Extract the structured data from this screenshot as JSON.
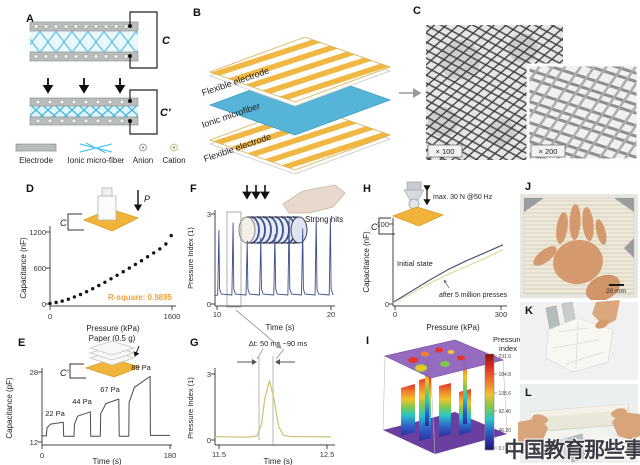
{
  "watermark": "中国教育那些事",
  "panels": {
    "A": {
      "label": "A",
      "cap1": "C",
      "cap2": "C'",
      "legend": [
        "Electrode",
        "Ionic micro-fiber",
        "Anion",
        "Cation"
      ]
    },
    "B": {
      "label": "B",
      "layer_top": "Flexible electrode",
      "layer_mid": "Ionic microfiber",
      "layer_bottom": "Flexible electrode"
    },
    "C": {
      "label": "C",
      "mag_left": "× 100",
      "mag_right": "× 200"
    },
    "D": {
      "label": "D",
      "cap": "C",
      "force": "P"
    },
    "E": {
      "label": "E",
      "cap": "C'",
      "inset_title": "Paper (0.5 g)",
      "step_labels": [
        "22 Pa",
        "44 Pa",
        "67 Pa",
        "89 Pa"
      ]
    },
    "F": {
      "label": "F",
      "inset_caption": "Strong hits"
    },
    "G": {
      "label": "G",
      "annotation": "Δt: 50 ms ~90 ms"
    },
    "H": {
      "label": "H",
      "cap": "C",
      "inset_caption": "max. 30 N @50 Hz"
    },
    "I": {
      "label": "I",
      "colorbar_title_1": "Pressure",
      "colorbar_title_2": "index",
      "colorbar_ticks": [
        "231.0",
        "184.8",
        "138.6",
        "92.40",
        "46.20",
        "0.000"
      ]
    },
    "J": {
      "label": "J",
      "scalebar": "20 mm"
    },
    "K": {
      "label": "K"
    },
    "L": {
      "label": "L"
    }
  },
  "colors": {
    "electrode_gray": "#b9bdbd",
    "fiber_blue": "#56c3e6",
    "stripe_yellow": "#f0b742",
    "ionic_layer_blue": "#55b4d8",
    "plate_yellow": "#f2b33a",
    "rsquare_orange": "#f0a13c",
    "spike_blue": "#3d4f8a",
    "peak_olive": "#cfc271",
    "initial_navy": "#4a5878",
    "aged_yellow": "#e2db9f"
  },
  "chart_data": [
    {
      "id": "D",
      "type": "scatter",
      "xlabel": "Pressure (kPa)",
      "ylabel": "Capacitance (nF)",
      "xlim": [
        0,
        1600
      ],
      "ylim": [
        0,
        1200
      ],
      "xticks": [
        0,
        1600
      ],
      "yticks": [
        0,
        600,
        1200
      ],
      "xtick_labels": [
        "0",
        "1600"
      ],
      "ytick_labels": [
        "0",
        "600",
        "1200"
      ],
      "annotation": "R-square: 0.9895",
      "point_color": "#151515",
      "x": [
        0,
        80,
        160,
        240,
        320,
        400,
        480,
        560,
        640,
        720,
        800,
        880,
        960,
        1040,
        1120,
        1200,
        1280,
        1360,
        1440,
        1520,
        1590
      ],
      "y": [
        8,
        25,
        48,
        80,
        118,
        158,
        205,
        255,
        308,
        362,
        420,
        478,
        538,
        598,
        660,
        722,
        788,
        852,
        918,
        1000,
        1140
      ]
    },
    {
      "id": "E",
      "type": "line",
      "xlabel": "Time (s)",
      "ylabel": "Capacitance (pF)",
      "xlim": [
        0,
        180
      ],
      "ylim": [
        12,
        28
      ],
      "xticks": [
        0,
        180
      ],
      "yticks": [
        12,
        28
      ],
      "xtick_labels": [
        "0",
        "180"
      ],
      "ytick_labels": [
        "12",
        "28"
      ],
      "step_pressures_pa": [
        22,
        44,
        67,
        89
      ],
      "line_color": "#4a4a4a",
      "x": [
        0,
        6,
        7,
        12,
        30,
        30.5,
        45,
        45.5,
        50,
        68,
        68.5,
        82,
        82.5,
        90,
        108,
        108.5,
        122,
        122.5,
        130,
        152,
        152.5,
        180
      ],
      "y": [
        13.4,
        13.4,
        15.2,
        16.1,
        16.5,
        13.3,
        13.3,
        16.0,
        17.9,
        18.9,
        13.3,
        13.3,
        18.5,
        20.8,
        21.8,
        13.3,
        13.3,
        21.0,
        24.5,
        27.0,
        13.5,
        13.5
      ]
    },
    {
      "id": "F",
      "type": "line",
      "xlabel": "Time (s)",
      "ylabel": "Pressure Index (1)",
      "xlim": [
        10,
        20
      ],
      "ylim": [
        0,
        3
      ],
      "xticks": [
        10,
        20
      ],
      "yticks": [
        0,
        3
      ],
      "xtick_labels": [
        "10",
        "20"
      ],
      "ytick_labels": [
        "0",
        "3"
      ],
      "baseline": 0.28,
      "line_color": "#3d4f8a",
      "spikes": [
        {
          "t": 10.35,
          "h": 2.45
        },
        {
          "t": 11.55,
          "h": 2.7
        },
        {
          "t": 12.75,
          "h": 2.1
        },
        {
          "t": 13.9,
          "h": 2.2
        },
        {
          "t": 15.1,
          "h": 2.3
        },
        {
          "t": 16.3,
          "h": 2.8
        },
        {
          "t": 17.45,
          "h": 2.5
        },
        {
          "t": 18.6,
          "h": 2.9
        },
        {
          "t": 19.8,
          "h": 2.85
        }
      ]
    },
    {
      "id": "G",
      "type": "line",
      "xlabel": "Time (s)",
      "ylabel": "Pressure Index (1)",
      "xlim": [
        11.5,
        12.5
      ],
      "ylim": [
        0,
        3
      ],
      "xticks": [
        11.5,
        12.5
      ],
      "yticks": [
        0,
        3
      ],
      "xtick_labels": [
        "11.5",
        "12.5"
      ],
      "ytick_labels": [
        "0",
        "3"
      ],
      "annotation": "Δt: 50 ms ~90 ms",
      "line_color": "#cfc271",
      "x": [
        11.5,
        11.78,
        11.86,
        11.9,
        11.93,
        11.97,
        12.01,
        12.05,
        12.09,
        12.15,
        12.3,
        12.5
      ],
      "y": [
        0.15,
        0.13,
        0.18,
        0.7,
        1.9,
        2.7,
        1.8,
        0.6,
        0.22,
        0.16,
        0.15,
        0.14
      ]
    },
    {
      "id": "H",
      "type": "line",
      "xlabel": "Pressure (kPa)",
      "ylabel": "Capacitance (nF)",
      "xlim": [
        0,
        300
      ],
      "ylim": [
        0,
        100
      ],
      "xticks": [
        0,
        300
      ],
      "yticks": [
        0,
        100
      ],
      "xtick_labels": [
        "0",
        "300"
      ],
      "ytick_labels": [
        "0",
        "100"
      ],
      "series": [
        {
          "name": "Initial state",
          "color": "#4a5878",
          "x": [
            0,
            50,
            100,
            150,
            200,
            250,
            300
          ],
          "y": [
            2,
            16,
            30,
            43,
            54,
            64,
            74
          ]
        },
        {
          "name": "after 5 million presses",
          "color": "#e2db9f",
          "x": [
            0,
            50,
            100,
            150,
            200,
            250,
            300
          ],
          "y": [
            1,
            13,
            26,
            37,
            47,
            57,
            68
          ]
        }
      ]
    },
    {
      "id": "I",
      "type": "heatmap",
      "title": "Pressure index",
      "colorbar_ticks": [
        231.0,
        184.8,
        138.6,
        92.4,
        46.2,
        0.0
      ],
      "colorbar_range": [
        0,
        231
      ]
    }
  ]
}
